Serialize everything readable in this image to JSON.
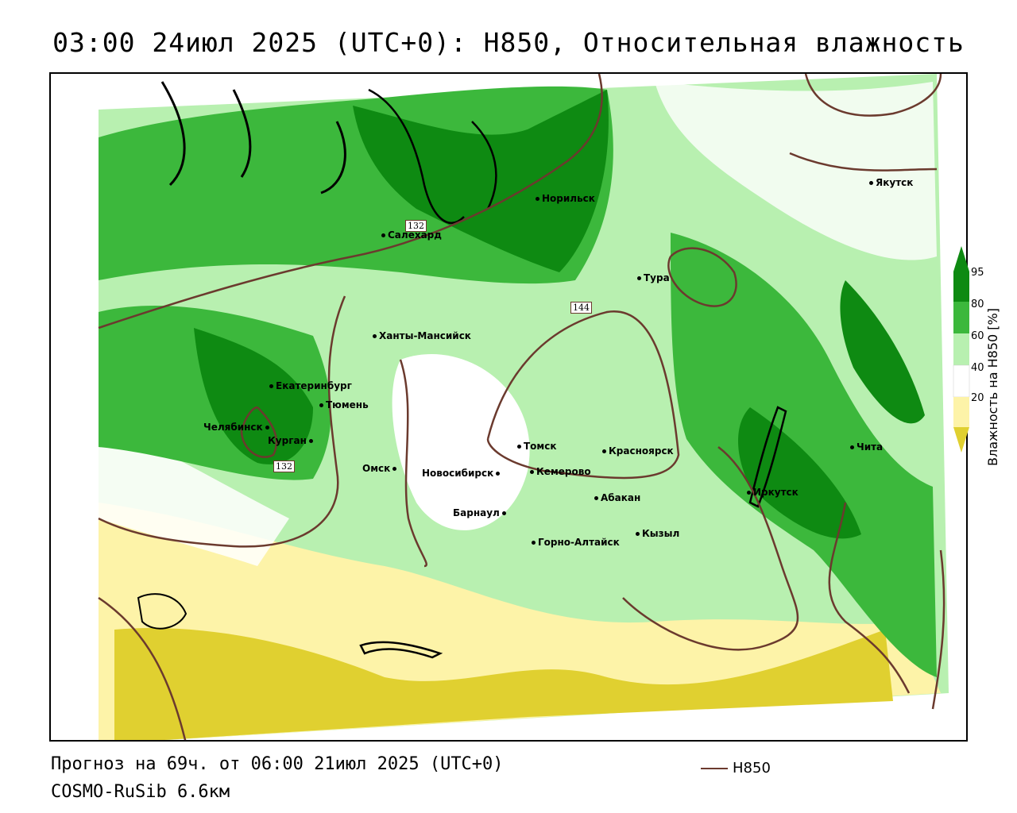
{
  "title": "03:00 24июл 2025 (UTC+0): H850, Относительная влажность",
  "footer": {
    "forecast": "Прогноз на 69ч. от 06:00 21июл 2025 (UTC+0)",
    "model": "COSMO-RuSib 6.6км"
  },
  "legend": {
    "contour_label": "H850",
    "colorbar_title": "Влажность на H850 [%]",
    "ticks": [
      "95",
      "80",
      "60",
      "40",
      "20"
    ],
    "colors": {
      "c95": "#0e8a12",
      "c80": "#3cb83c",
      "c60": "#b8f0b0",
      "c40": "#ffffff",
      "c20": "#fdf3a8",
      "c10": "#e0d030"
    }
  },
  "contour_labels": [
    "132",
    "144",
    "132"
  ],
  "cities": [
    {
      "name": "Якутск"
    },
    {
      "name": "Норильск"
    },
    {
      "name": "Салехард"
    },
    {
      "name": "Тура"
    },
    {
      "name": "Ханты-Мансийск"
    },
    {
      "name": "Екатеринбург"
    },
    {
      "name": "Тюмень"
    },
    {
      "name": "Челябинск"
    },
    {
      "name": "Курган"
    },
    {
      "name": "Омск"
    },
    {
      "name": "Томск"
    },
    {
      "name": "Красноярск"
    },
    {
      "name": "Новосибирск"
    },
    {
      "name": "Кемерово"
    },
    {
      "name": "Абакан"
    },
    {
      "name": "Барнаул"
    },
    {
      "name": "Горно-Алтайск"
    },
    {
      "name": "Кызыл"
    },
    {
      "name": "Иркутск"
    },
    {
      "name": "Чита"
    }
  ]
}
